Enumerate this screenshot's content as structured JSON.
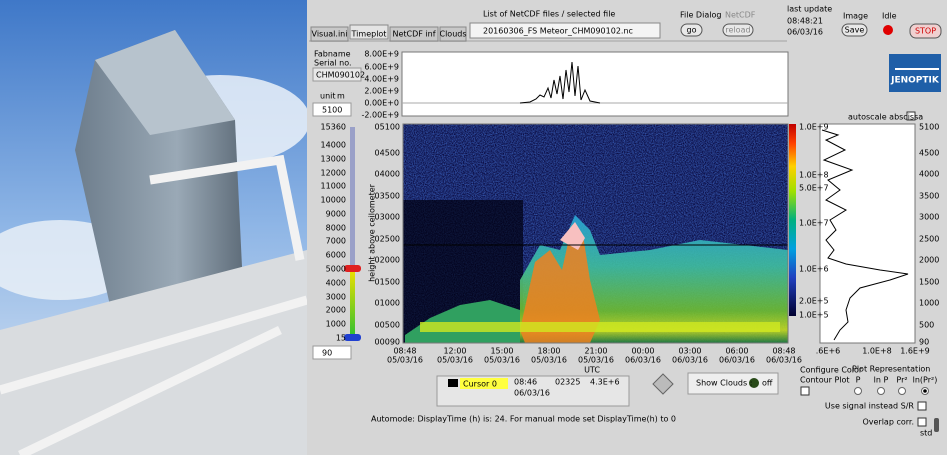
{
  "tabs": [
    "Visual.ini",
    "Timeplot",
    "NetCDF inf",
    "Clouds"
  ],
  "file_list": {
    "label": "List of NetCDF files / selected file",
    "selected": "20160306_FS Meteor_CHM090102.nc"
  },
  "file_dialog": {
    "label": "File Dialog",
    "button": "go"
  },
  "netcdf": {
    "label": "NetCDF",
    "button": "reload"
  },
  "last_update": {
    "label": "last update",
    "time": "08:48:21",
    "date": "06/03/16"
  },
  "image": {
    "label": "Image",
    "button": "Save"
  },
  "status": {
    "label": "Idle"
  },
  "stop_button": "STOP",
  "device": {
    "fabname_label": "Fabname",
    "serial_label": "Serial no.",
    "serial": "CHM090102"
  },
  "unit": {
    "label": "unit",
    "value": "m",
    "max_height": "5100",
    "min_height": "90"
  },
  "slider_ticks": [
    "15360",
    "14000",
    "13000",
    "12000",
    "11000",
    "10000",
    "9000",
    "8000",
    "7000",
    "6000",
    "5000",
    "4000",
    "3000",
    "2000",
    "1000",
    "15"
  ],
  "top_plot": {
    "yticks": [
      "8.00E+9",
      "6.00E+9",
      "4.00E+9",
      "2.00E+9",
      "0.00E+0",
      "-2.00E+9"
    ]
  },
  "main_plot": {
    "y_label": "height above ceilometer",
    "yticks": [
      "05100",
      "04500",
      "04000",
      "03500",
      "03000",
      "02500",
      "02000",
      "01500",
      "01000",
      "00500",
      "00090"
    ],
    "xticks": [
      {
        "time": "08:48",
        "date": "05/03/16"
      },
      {
        "time": "12:00",
        "date": "05/03/16"
      },
      {
        "time": "15:00",
        "date": "05/03/16"
      },
      {
        "time": "18:00",
        "date": "05/03/16"
      },
      {
        "time": "21:00",
        "date": "05/03/16"
      },
      {
        "time": "00:00",
        "date": "06/03/16"
      },
      {
        "time": "03:00",
        "date": "06/03/16"
      },
      {
        "time": "06:00",
        "date": "06/03/16"
      },
      {
        "time": "08:48",
        "date": "06/03/16"
      }
    ],
    "x_label": "UTC"
  },
  "colorbar": {
    "ticks": [
      "1.0E+9",
      "1.0E+8",
      "5.0E+7",
      "1.0E+7",
      "1.0E+6",
      "2.0E+5",
      "1.0E+5"
    ]
  },
  "logo": "JENOPTIK",
  "profile_plot": {
    "autoscale_label": "autoscale abscissa",
    "yticks": [
      "5100",
      "4500",
      "4000",
      "3500",
      "3000",
      "2500",
      "2000",
      "1500",
      "1000",
      "500",
      "90"
    ],
    "xticks": [
      ".6E+6",
      "1.0E+8",
      "1.6E+9"
    ]
  },
  "cursor": {
    "name": "Cursor 0",
    "time": "08:46",
    "date": "06/03/16",
    "height": "02325",
    "value": "4.3E+6"
  },
  "show_clouds": {
    "label": "Show Clouds :",
    "state": "off"
  },
  "configure_color": [
    "Configure Color",
    "Contour Plot"
  ],
  "plot_representation": {
    "label": "Plot Representation",
    "options": [
      "P",
      "ln P",
      "Pr²",
      "ln(Pr²)"
    ]
  },
  "use_signal": "Use signal instead S/R",
  "overlap": {
    "label": "Overlap corr.",
    "mode": "std"
  },
  "automode": "Automode: DisplayTime (h) is:  24.   For manual mode set DisplayTime(h)  to  0"
}
